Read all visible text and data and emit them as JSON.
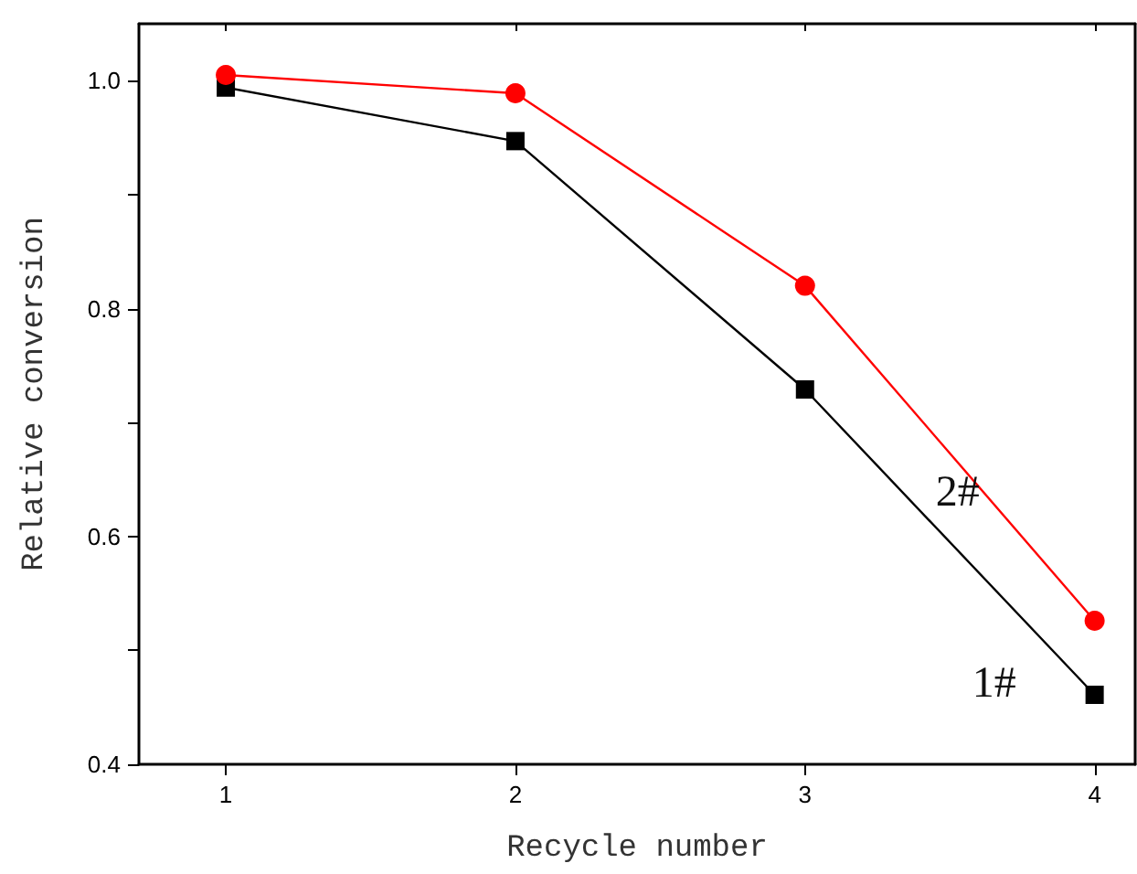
{
  "chart_data": {
    "type": "line",
    "xlabel": "Recycle number",
    "ylabel": "Relative conversion",
    "x": [
      1,
      2,
      3,
      4
    ],
    "series": [
      {
        "name": "1#",
        "color": "#000000",
        "marker": "square",
        "values": [
          0.994,
          0.947,
          0.729,
          0.461
        ]
      },
      {
        "name": "2#",
        "color": "#ff0000",
        "marker": "circle",
        "values": [
          1.005,
          0.989,
          0.82,
          0.526
        ]
      }
    ],
    "xlim": [
      0.7,
      4.14
    ],
    "xticks": [
      1,
      2,
      3,
      4
    ],
    "ylim": [
      0.4,
      1.05
    ],
    "yticks": [
      0.4,
      {
        "value": 0.5,
        "label": null
      },
      0.6,
      {
        "value": 0.7,
        "label": null
      },
      0.8,
      {
        "value": 0.9,
        "label": null
      },
      {
        "value": 1.0,
        "label": "1.0"
      }
    ],
    "grid": false,
    "legend": false,
    "line_style": "solid"
  }
}
